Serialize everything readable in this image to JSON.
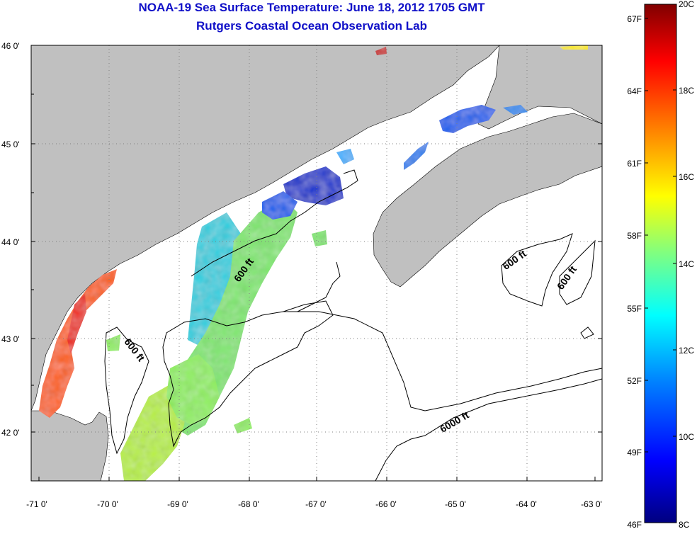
{
  "header": {
    "title": "NOAA-19 Sea Surface Temperature:  June 18, 2012 1705 GMT",
    "subtitle": "Rutgers Coastal Ocean Observation Lab"
  },
  "map": {
    "lon_ticks": [
      "-71 0'",
      "-70 0'",
      "-69 0'",
      "-68 0'",
      "-67 0'",
      "-66 0'",
      "-65 0'",
      "-64 0'",
      "-63 0'"
    ],
    "lat_ticks": [
      "46 0'",
      "45 0'",
      "44 0'",
      "43 0'",
      "42 0'"
    ],
    "contour_labels": [
      "600 ft",
      "600 ft",
      "600 ft",
      "600 ft",
      "6000 ft"
    ],
    "colors": {
      "land": "#c0c0c0",
      "grid": "#808080",
      "contour": "#000000"
    }
  },
  "colorbar": {
    "celsius_labels": [
      "20C",
      "18C",
      "16C",
      "14C",
      "12C",
      "10C",
      "8C"
    ],
    "fahrenheit_labels": [
      "67F",
      "64F",
      "61F",
      "58F",
      "55F",
      "52F",
      "49F",
      "46F"
    ],
    "colors": [
      "#800000",
      "#ff0000",
      "#ff8000",
      "#ffff00",
      "#80ff80",
      "#00ffff",
      "#0080ff",
      "#0000ff",
      "#000080"
    ]
  }
}
